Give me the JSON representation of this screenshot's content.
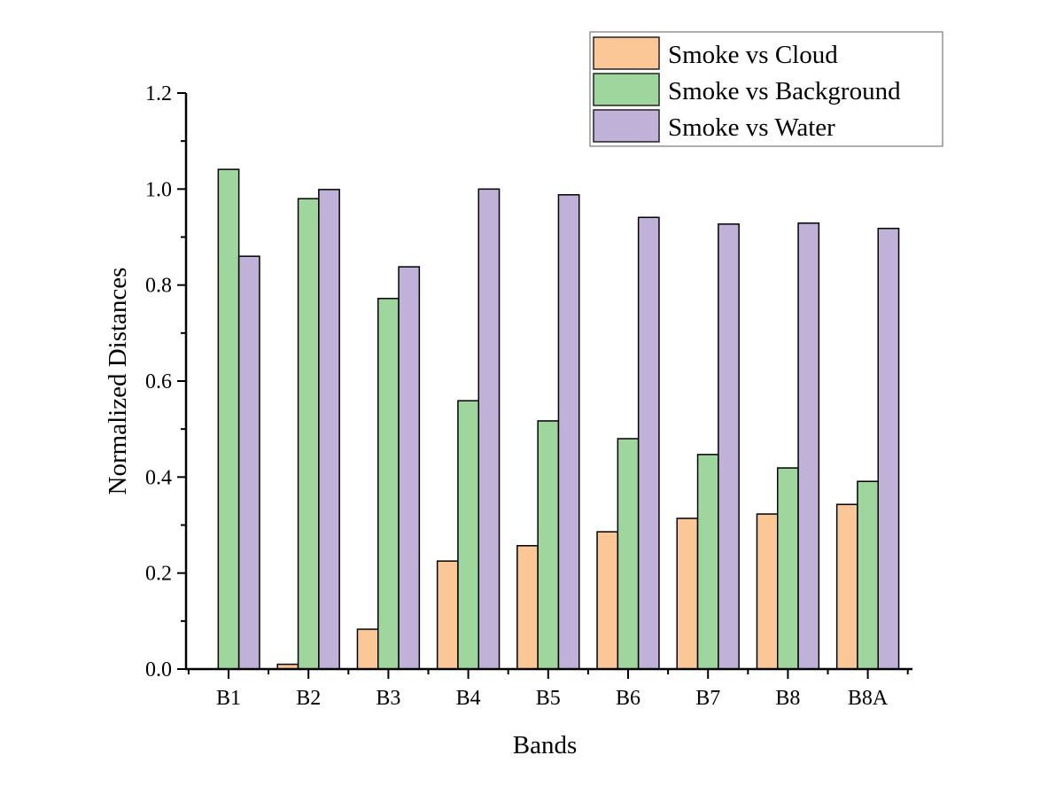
{
  "chart_data": {
    "type": "bar",
    "title": "",
    "xlabel": "Bands",
    "ylabel": "Normalized Distances",
    "categories": [
      "B1",
      "B2",
      "B3",
      "B4",
      "B5",
      "B6",
      "B7",
      "B8",
      "B8A"
    ],
    "ylim": [
      0,
      1.2
    ],
    "yticks": [
      "0.0",
      "0.2",
      "0.4",
      "0.6",
      "0.8",
      "1.0",
      "1.2"
    ],
    "grid": false,
    "legend_position": "top-right",
    "series": [
      {
        "name": "Smoke vs Cloud",
        "color": "#fbc797",
        "values": [
          0,
          0.01,
          0.083,
          0.225,
          0.257,
          0.286,
          0.314,
          0.323,
          0.343
        ]
      },
      {
        "name": "Smoke vs Background",
        "color": "#9fd69e",
        "values": [
          1.041,
          0.98,
          0.772,
          0.559,
          0.517,
          0.48,
          0.447,
          0.419,
          0.391
        ]
      },
      {
        "name": "Smoke vs Water",
        "color": "#c0b1d8",
        "values": [
          0.86,
          0.999,
          0.838,
          1.0,
          0.988,
          0.941,
          0.927,
          0.929,
          0.918
        ]
      }
    ]
  }
}
